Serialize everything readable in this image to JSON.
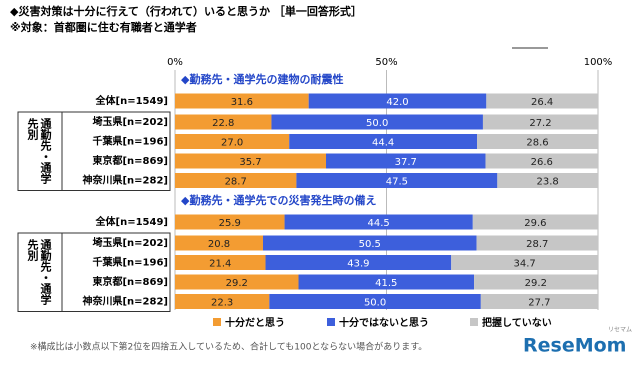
{
  "title": "◆災害対策は十分に行えて（行われて）いると思うか ［単一回答形式］",
  "subtitle": "※対象：首都圏に住む有職者と通学者",
  "footnote": "※構成比は小数点以下第2位を四捨五入しているため、合計しても100とならない場合があります。",
  "watermark": {
    "logo": "ReseMom",
    "kana": "リセマム"
  },
  "legend": "bottom",
  "chart_data": [
    {
      "type": "bar",
      "orientation": "horizontal",
      "stacked": true,
      "title": "◆勤務先・通学先の建物の耐震性",
      "group_label": "通勤先・通学先別",
      "categories": [
        "全体[n=1549]",
        "埼玉県[n=202]",
        "千葉県[n=196]",
        "東京都[n=869]",
        "神奈川県[n=282]"
      ],
      "series": [
        {
          "name": "十分だと思う",
          "color": "#f39c32",
          "values": [
            31.6,
            22.8,
            27.0,
            35.7,
            28.7
          ],
          "value_labels": [
            "31.6",
            "22.8",
            "27.0",
            "35.7",
            "28.7"
          ]
        },
        {
          "name": "十分ではないと思う",
          "color": "#3d5fdc",
          "values": [
            42.0,
            50.0,
            44.4,
            37.7,
            47.5
          ],
          "value_labels": [
            "42.0",
            "50.0",
            "44.4",
            "37.7",
            "47.5"
          ]
        },
        {
          "name": "把握していない",
          "color": "#c6c6c6",
          "values": [
            26.4,
            27.2,
            28.6,
            26.6,
            23.8
          ]
        }
      ],
      "xlim": [
        0,
        100
      ],
      "xticks": [
        {
          "value": 0,
          "label": "0%"
        },
        {
          "value": 50,
          "label": "50%"
        },
        {
          "value": 100,
          "label": "100%"
        }
      ],
      "grid": true
    },
    {
      "type": "bar",
      "orientation": "horizontal",
      "stacked": true,
      "title": "◆勤務先・通学先での災害発生時の備え",
      "group_label": "通勤先・通学先別",
      "categories": [
        "全体[n=1549]",
        "埼玉県[n=202]",
        "千葉県[n=196]",
        "東京都[n=869]",
        "神奈川県[n=282]"
      ],
      "series": [
        {
          "name": "十分だと思う",
          "color": "#f39c32",
          "values": [
            25.9,
            20.8,
            21.4,
            29.2,
            22.3
          ]
        },
        {
          "name": "十分ではないと思う",
          "color": "#3d5fdc",
          "values": [
            44.5,
            50.5,
            43.9,
            41.5,
            50.0
          ],
          "value_labels": [
            "44.5",
            "50.5",
            "43.9",
            "41.5",
            "50.0"
          ]
        },
        {
          "name": "把握していない",
          "color": "#c6c6c6",
          "values": [
            29.6,
            28.7,
            34.7,
            29.2,
            27.7
          ]
        }
      ],
      "xlim": [
        0,
        100
      ],
      "grid": true
    }
  ]
}
